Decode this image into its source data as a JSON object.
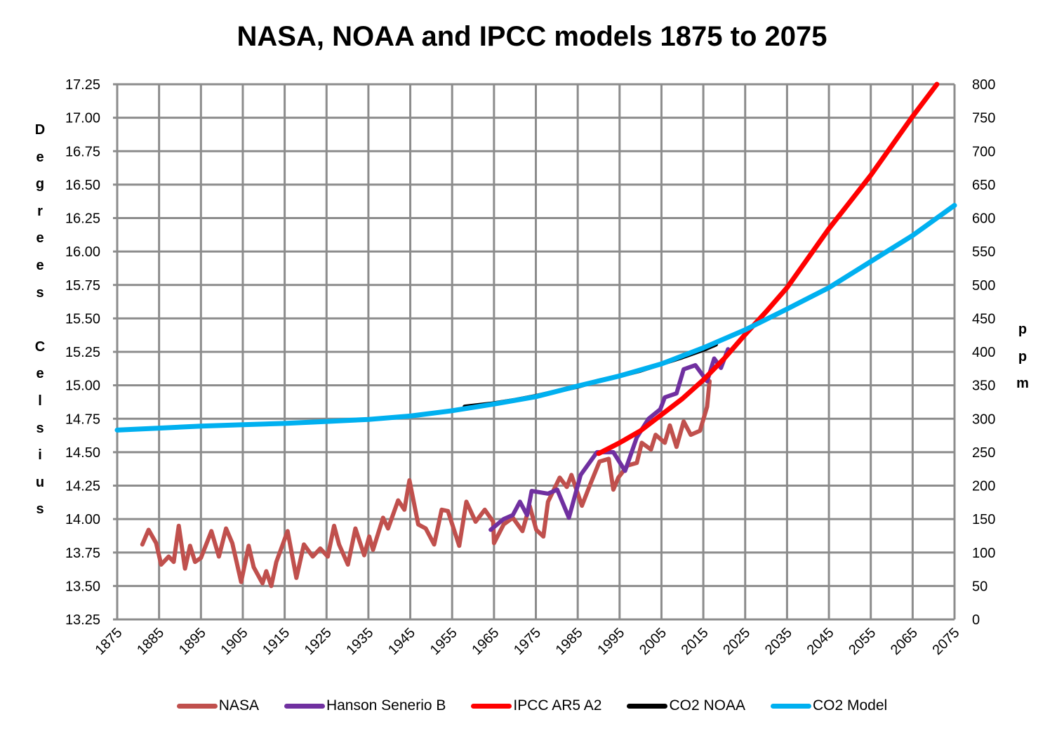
{
  "chart_data": {
    "type": "line",
    "title": "NASA, NOAA and IPCC models 1875 to 2075",
    "ylabel_left": "Degrees Celsius",
    "ylabel_right": "ppm",
    "xlim": [
      1875,
      2075
    ],
    "ylim_left": [
      13.25,
      17.25
    ],
    "ylim_right": [
      0,
      800
    ],
    "grid": true,
    "legend_placement": "bottom",
    "x_ticks": [
      "1875",
      "1885",
      "1895",
      "1905",
      "1915",
      "1925",
      "1935",
      "1945",
      "1955",
      "1965",
      "1975",
      "1985",
      "1995",
      "2005",
      "2015",
      "2025",
      "2035",
      "2045",
      "2055",
      "2065",
      "2075"
    ],
    "y_ticks_left": [
      "17.25",
      "17.00",
      "16.75",
      "16.50",
      "16.25",
      "16.00",
      "15.75",
      "15.50",
      "15.25",
      "15.00",
      "14.75",
      "14.50",
      "14.25",
      "14.00",
      "13.75",
      "13.50",
      "13.25"
    ],
    "y_ticks_right": [
      "800",
      "750",
      "700",
      "650",
      "600",
      "550",
      "500",
      "450",
      "400",
      "350",
      "300",
      "250",
      "200",
      "150",
      "100",
      "50",
      "0"
    ],
    "series": [
      {
        "name": "NASA",
        "axis": "left",
        "color": "#c0504d",
        "x": [
          1881,
          1882.5,
          1884.3,
          1885.5,
          1887.3,
          1888.5,
          1889.7,
          1891.2,
          1892.4,
          1893.6,
          1895,
          1897.5,
          1899.3,
          1901,
          1902.5,
          1904.6,
          1906.4,
          1907.6,
          1909.7,
          1910.6,
          1911.8,
          1913,
          1915.7,
          1917.8,
          1919.6,
          1921.7,
          1923.5,
          1925.3,
          1926.8,
          1928,
          1930.1,
          1931.9,
          1934,
          1935.2,
          1936.1,
          1938.5,
          1939.7,
          1942.1,
          1943.6,
          1944.8,
          1946.9,
          1948.7,
          1950.7,
          1952.5,
          1954,
          1956.7,
          1958.4,
          1960.6,
          1962.8,
          1964.8,
          1965,
          1967.3,
          1969.5,
          1971.8,
          1973.5,
          1975.1,
          1976.8,
          1977.9,
          1980.7,
          1982.4,
          1983.5,
          1986,
          1988,
          1990.2,
          1992.4,
          1993.5,
          1994.7,
          1996.9,
          1999.1,
          2000.3,
          2002.5,
          2003.6,
          2005.8,
          2007,
          2008.6,
          2010.3,
          2012,
          2014.2,
          2015.9,
          2016.5
        ],
        "y": [
          13.81,
          13.92,
          13.82,
          13.66,
          13.72,
          13.68,
          13.95,
          13.63,
          13.8,
          13.68,
          13.71,
          13.91,
          13.72,
          13.93,
          13.82,
          13.53,
          13.8,
          13.64,
          13.52,
          13.61,
          13.5,
          13.68,
          13.91,
          13.56,
          13.81,
          13.72,
          13.78,
          13.72,
          13.95,
          13.81,
          13.66,
          13.93,
          13.73,
          13.87,
          13.77,
          14.01,
          13.93,
          14.14,
          14.07,
          14.29,
          13.96,
          13.93,
          13.81,
          14.07,
          14.06,
          13.8,
          14.13,
          13.98,
          14.07,
          13.98,
          13.82,
          13.96,
          14.01,
          13.91,
          14.1,
          13.92,
          13.87,
          14.13,
          14.31,
          14.24,
          14.33,
          14.1,
          14.26,
          14.43,
          14.45,
          14.22,
          14.31,
          14.4,
          14.42,
          14.57,
          14.52,
          14.63,
          14.57,
          14.7,
          14.54,
          14.73,
          14.63,
          14.66,
          14.84,
          15.03
        ]
      },
      {
        "name": "Hanson Senerio B",
        "axis": "left",
        "color": "#7030a0",
        "x": [
          1964.2,
          1967.3,
          1969.5,
          1971.2,
          1972.9,
          1974,
          1977.9,
          1980.1,
          1982.9,
          1985.7,
          1989.6,
          1993.5,
          1996.3,
          1999.1,
          2001.9,
          2004.7,
          2005.8,
          2008.6,
          2010.3,
          2013.1,
          2015.9,
          2017.6,
          2019.2,
          2020.9
        ],
        "y": [
          13.92,
          14.0,
          14.03,
          14.13,
          14.03,
          14.21,
          14.19,
          14.22,
          14.01,
          14.33,
          14.5,
          14.5,
          14.36,
          14.61,
          14.75,
          14.82,
          14.91,
          14.94,
          15.12,
          15.15,
          15.03,
          15.2,
          15.13,
          15.27
        ]
      },
      {
        "name": "IPCC AR5 A2",
        "axis": "left",
        "color": "#ff0000",
        "x": [
          1990,
          1995,
          2000,
          2005,
          2010,
          2015,
          2020,
          2025,
          2030,
          2035,
          2040,
          2045,
          2050,
          2055,
          2060,
          2065,
          2070.8
        ],
        "y": [
          14.49,
          14.57,
          14.66,
          14.78,
          14.9,
          15.04,
          15.2,
          15.38,
          15.55,
          15.73,
          15.95,
          16.17,
          16.37,
          16.57,
          16.79,
          17.01,
          17.25
        ]
      },
      {
        "name": "CO2 NOAA",
        "axis": "right",
        "color": "#000000",
        "x": [
          1958,
          1965,
          1970,
          1975,
          1980,
          1985,
          1990,
          1995,
          2000,
          2005,
          2010,
          2015,
          2018
        ],
        "y": [
          318,
          323,
          328,
          334,
          341,
          348,
          357,
          364,
          372,
          382,
          392,
          403,
          411
        ]
      },
      {
        "name": "CO2 Model",
        "axis": "right",
        "color": "#00b0f0",
        "x": [
          1875,
          1885,
          1895,
          1905,
          1915,
          1925,
          1935,
          1945,
          1955,
          1965,
          1975,
          1985,
          1995,
          2005,
          2015,
          2025,
          2035,
          2045,
          2055,
          2065,
          2075
        ],
        "y": [
          283,
          286,
          289,
          291,
          293,
          296,
          299,
          304,
          312,
          322,
          333,
          349,
          364,
          382,
          406,
          433,
          464,
          496,
          535,
          574,
          619
        ]
      }
    ]
  }
}
